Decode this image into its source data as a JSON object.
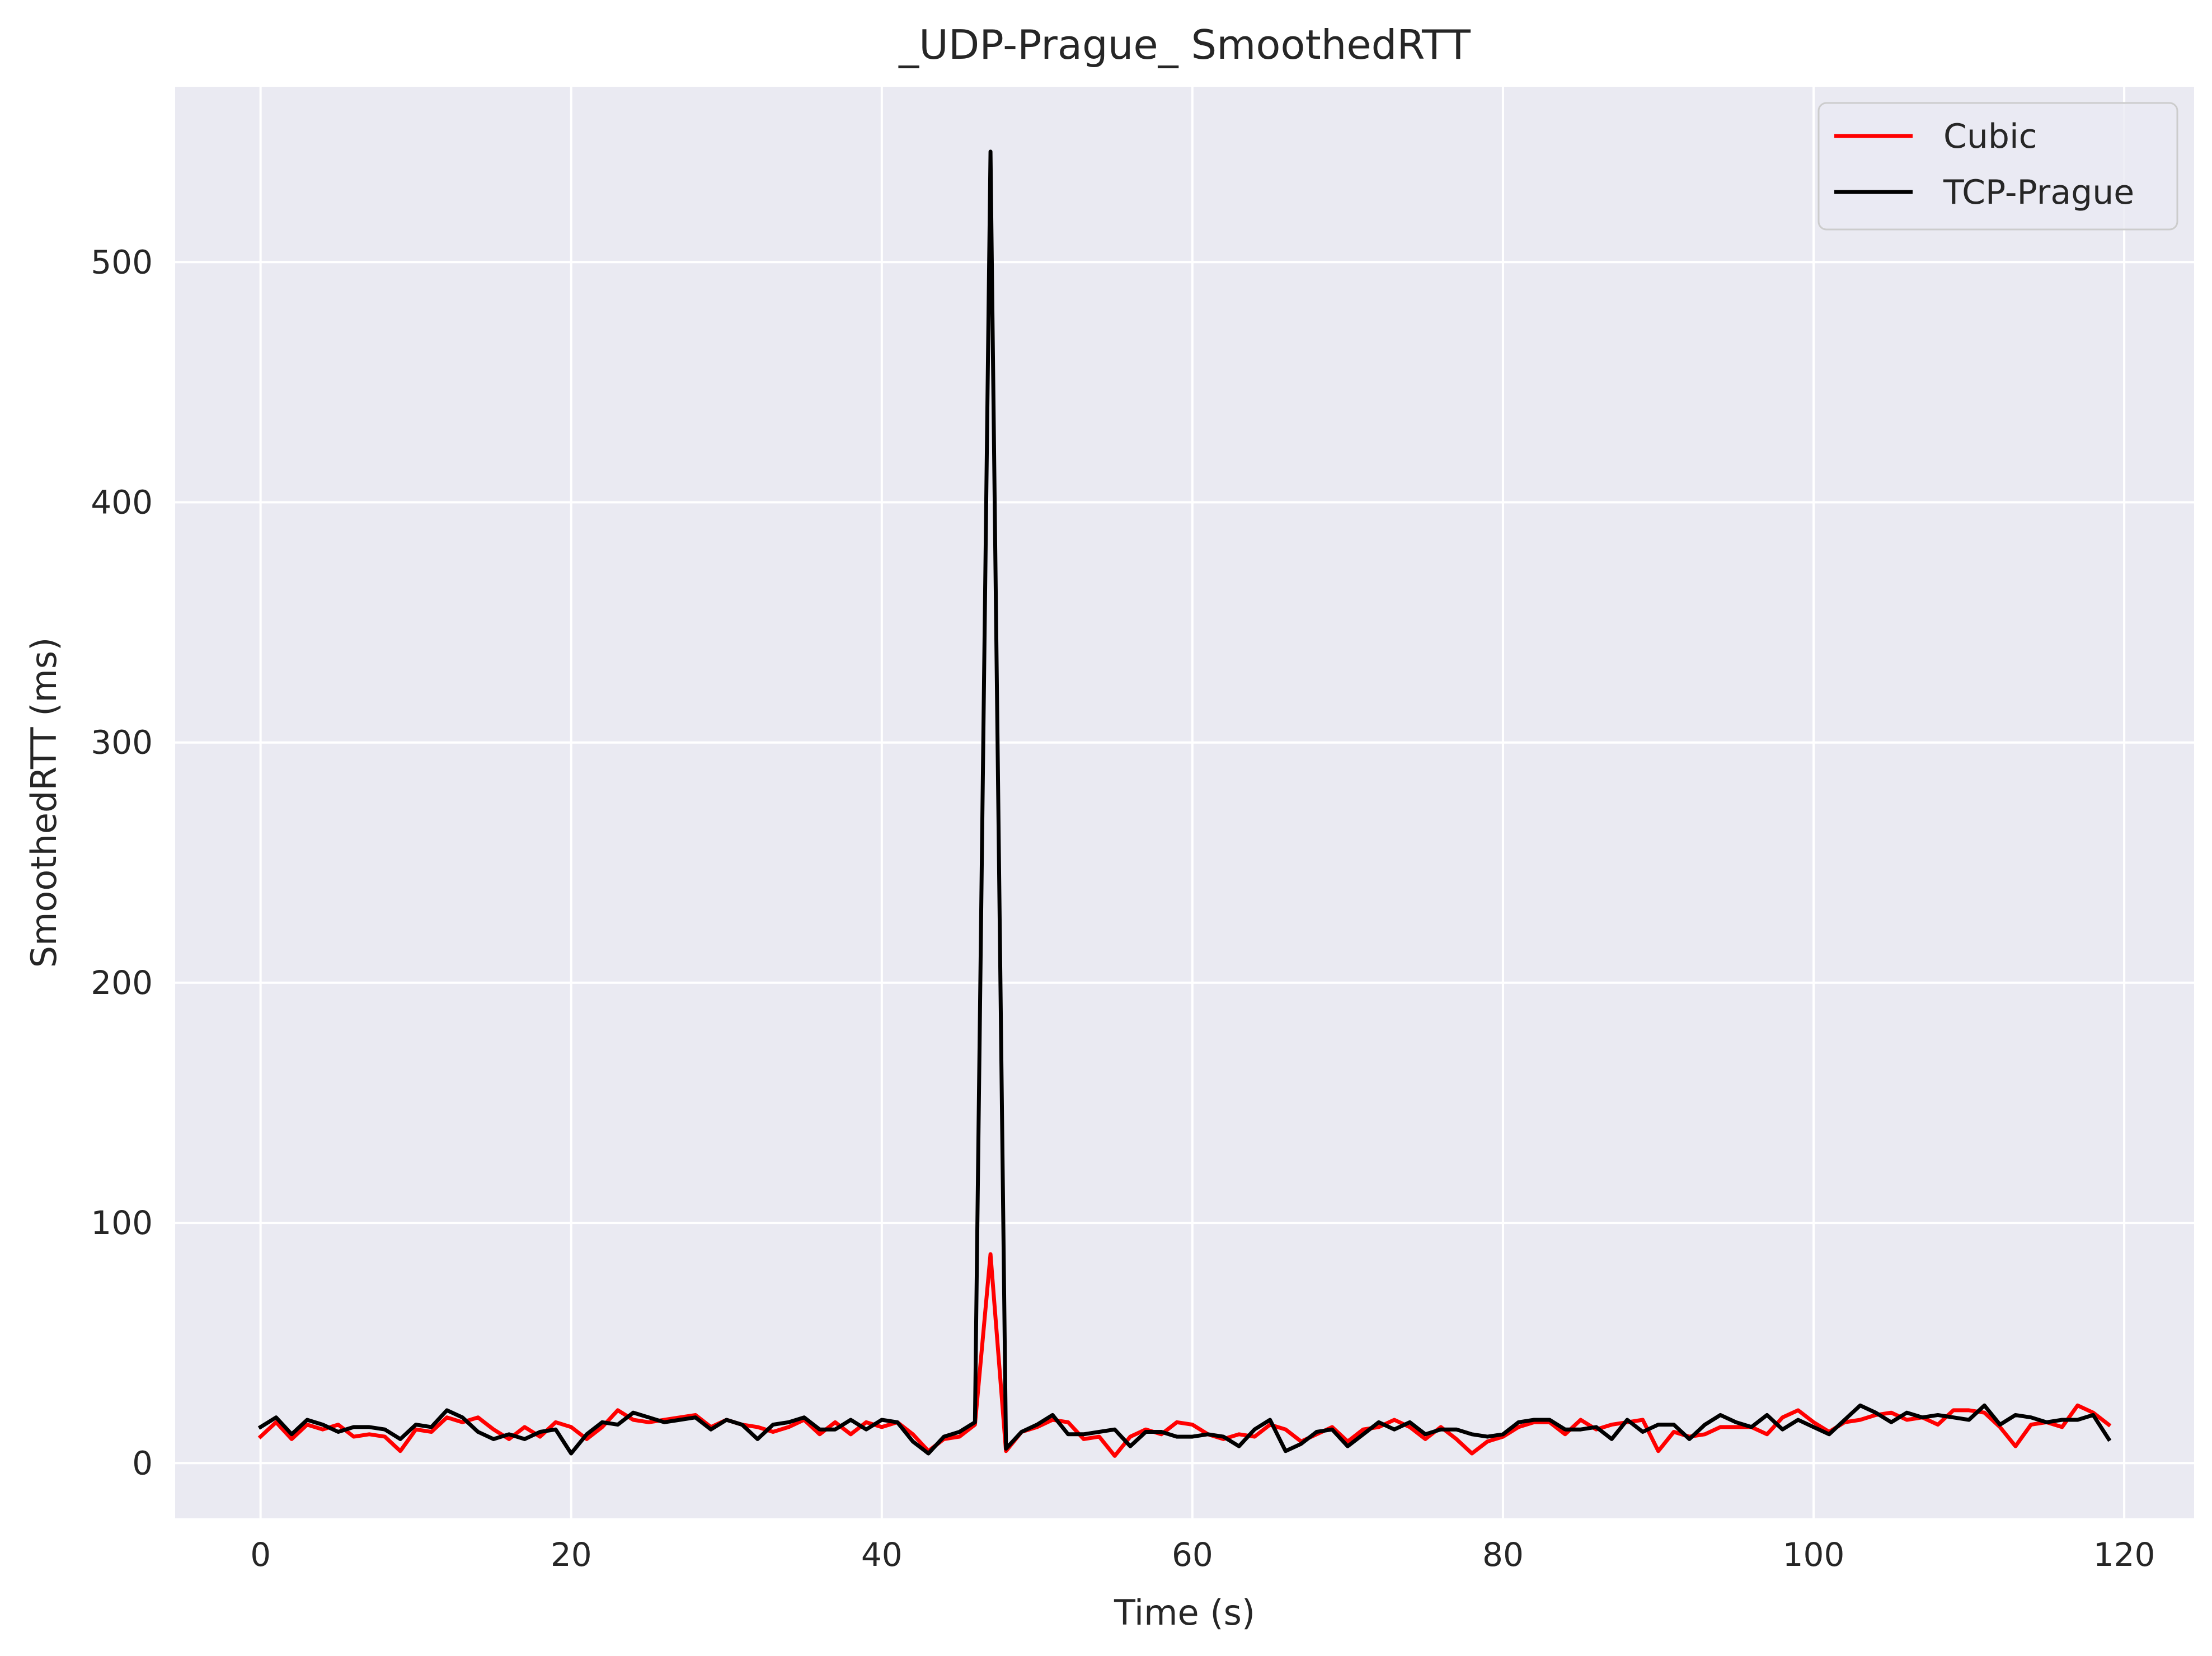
{
  "chart_data": {
    "type": "line",
    "title": "_UDP-Prague_ SmoothedRTT",
    "xlabel": "Time (s)",
    "ylabel": "SmoothedRTT (ms)",
    "xlim": [
      -5.5,
      124.5
    ],
    "ylim": [
      -23,
      573
    ],
    "xticks": [
      0,
      20,
      40,
      60,
      80,
      100,
      120
    ],
    "yticks": [
      0,
      100,
      200,
      300,
      400,
      500
    ],
    "grid": true,
    "legend_position": "upper right",
    "x": [
      0,
      1,
      2,
      3,
      4,
      5,
      6,
      7,
      8,
      9,
      10,
      11,
      12,
      13,
      14,
      15,
      16,
      17,
      18,
      19,
      20,
      21,
      22,
      23,
      24,
      25,
      26,
      27,
      28,
      29,
      30,
      31,
      32,
      33,
      34,
      35,
      36,
      37,
      38,
      39,
      40,
      41,
      42,
      43,
      44,
      45,
      46,
      47,
      48,
      49,
      50,
      51,
      52,
      53,
      54,
      55,
      56,
      57,
      58,
      59,
      60,
      61,
      62,
      63,
      64,
      65,
      66,
      67,
      68,
      69,
      70,
      71,
      72,
      73,
      74,
      75,
      76,
      77,
      78,
      79,
      80,
      81,
      82,
      83,
      84,
      85,
      86,
      87,
      88,
      89,
      90,
      91,
      92,
      93,
      94,
      95,
      96,
      97,
      98,
      99,
      100,
      101,
      102,
      103,
      104,
      105,
      106,
      107,
      108,
      109,
      110,
      111,
      112,
      113,
      114,
      115,
      116,
      117,
      118,
      119
    ],
    "series": [
      {
        "name": "Cubic",
        "color": "#ff0000",
        "values": [
          11,
          17,
          10,
          16,
          14,
          16,
          11,
          12,
          11,
          5,
          14,
          13,
          19,
          17,
          19,
          14,
          10,
          15,
          11,
          17,
          15,
          10,
          15,
          22,
          18,
          17,
          18,
          19,
          20,
          15,
          18,
          16,
          15,
          13,
          15,
          18,
          12,
          17,
          12,
          17,
          15,
          17,
          12,
          5,
          10,
          11,
          16,
          87,
          5,
          13,
          15,
          18,
          17,
          10,
          11,
          3,
          11,
          14,
          12,
          17,
          16,
          12,
          10,
          12,
          11,
          16,
          14,
          9,
          12,
          15,
          9,
          14,
          15,
          18,
          15,
          10,
          15,
          10,
          4,
          9,
          11,
          15,
          17,
          17,
          12,
          18,
          14,
          16,
          17,
          18,
          5,
          13,
          11,
          12,
          15,
          15,
          15,
          12,
          19,
          22,
          17,
          13,
          17,
          18,
          20,
          21,
          18,
          19,
          16,
          22,
          22,
          21,
          15,
          7,
          16,
          17,
          15,
          24,
          21,
          16
        ]
      },
      {
        "name": "TCP-Prague",
        "color": "#000000",
        "values": [
          15,
          19,
          12,
          18,
          16,
          13,
          15,
          15,
          14,
          10,
          16,
          15,
          22,
          19,
          13,
          10,
          12,
          10,
          13,
          14,
          4,
          12,
          17,
          16,
          21,
          19,
          17,
          18,
          19,
          14,
          18,
          16,
          10,
          16,
          17,
          19,
          14,
          14,
          18,
          14,
          18,
          17,
          9,
          4,
          11,
          13,
          17,
          546,
          6,
          13,
          16,
          20,
          12,
          12,
          13,
          14,
          7,
          13,
          13,
          11,
          11,
          12,
          11,
          7,
          14,
          18,
          5,
          8,
          13,
          14,
          7,
          12,
          17,
          14,
          17,
          12,
          14,
          14,
          12,
          11,
          12,
          17,
          18,
          18,
          14,
          14,
          15,
          10,
          18,
          13,
          16,
          16,
          10,
          16,
          20,
          17,
          15,
          20,
          14,
          18,
          15,
          12,
          18,
          24,
          21,
          17,
          21,
          19,
          20,
          19,
          18,
          24,
          16,
          20,
          19,
          17,
          18,
          18,
          20,
          10
        ]
      }
    ]
  }
}
